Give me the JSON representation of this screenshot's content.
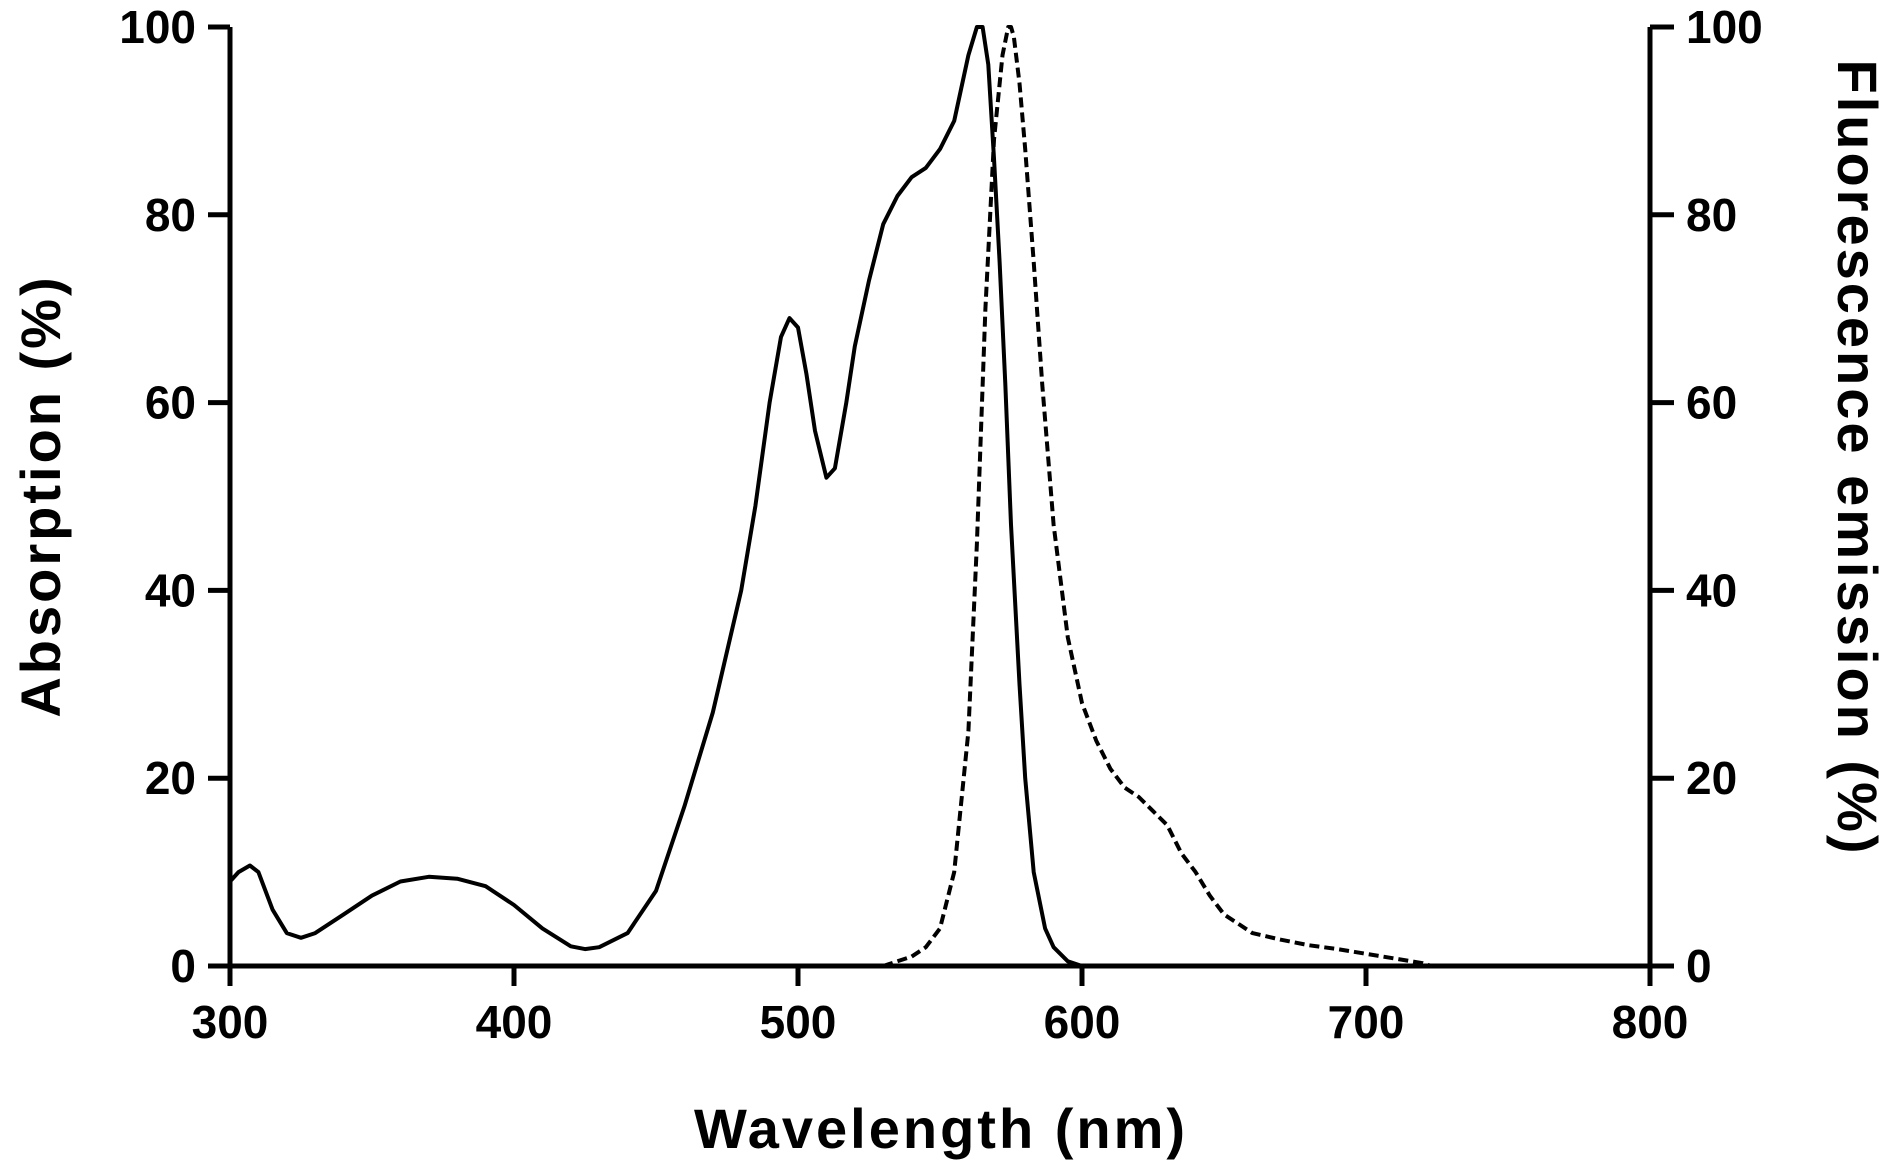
{
  "chart_data": {
    "type": "line",
    "title": "",
    "xlabel": "Wavelength (nm)",
    "ylabel": "Absorption (%)",
    "y2label": "Fluorescence emission (%)",
    "xlim": [
      300,
      800
    ],
    "ylim": [
      0,
      100
    ],
    "y2lim": [
      0,
      100
    ],
    "xticks": [
      300,
      400,
      500,
      600,
      700,
      800
    ],
    "yticks": [
      0,
      20,
      40,
      60,
      80,
      100
    ],
    "y2ticks": [
      0,
      20,
      40,
      60,
      80,
      100
    ],
    "grid": false,
    "series": [
      {
        "name": "Absorption",
        "axis": "left",
        "style": "solid",
        "x": [
          300,
          303,
          307,
          310,
          315,
          320,
          325,
          330,
          340,
          350,
          360,
          370,
          380,
          390,
          400,
          410,
          420,
          425,
          430,
          440,
          450,
          460,
          470,
          480,
          485,
          490,
          494,
          497,
          500,
          503,
          506,
          510,
          513,
          517,
          520,
          525,
          530,
          535,
          540,
          545,
          550,
          555,
          560,
          563,
          565,
          567,
          569,
          571,
          573,
          575,
          578,
          580,
          583,
          587,
          590,
          595,
          600,
          605
        ],
        "y": [
          9,
          10,
          10.7,
          10,
          6,
          3.5,
          3,
          3.5,
          5.5,
          7.5,
          9,
          9.5,
          9.3,
          8.5,
          6.5,
          4,
          2.1,
          1.8,
          2,
          3.5,
          8,
          17,
          27,
          40,
          49,
          60,
          67,
          69,
          68,
          63,
          57,
          52,
          53,
          60,
          66,
          73,
          79,
          82,
          84,
          85,
          87,
          90,
          97,
          100,
          100,
          96,
          86,
          75,
          62,
          47,
          30,
          20,
          10,
          4,
          2,
          0.5,
          0,
          0
        ]
      },
      {
        "name": "Fluorescence emission",
        "axis": "right",
        "style": "dashed",
        "x": [
          530,
          540,
          545,
          550,
          555,
          560,
          563,
          566,
          569,
          572,
          574,
          575,
          576,
          578,
          580,
          583,
          586,
          590,
          595,
          600,
          605,
          610,
          615,
          620,
          625,
          630,
          635,
          640,
          645,
          650,
          655,
          660,
          670,
          680,
          690,
          700,
          710,
          720,
          723
        ],
        "y": [
          0,
          1,
          2,
          4,
          10,
          25,
          45,
          70,
          88,
          97,
          100,
          100,
          99,
          94,
          87,
          75,
          62,
          47,
          35,
          28,
          24,
          21,
          19,
          18,
          16.5,
          15,
          12,
          10,
          7.5,
          5.5,
          4.5,
          3.5,
          2.8,
          2.2,
          1.8,
          1.3,
          0.8,
          0.3,
          0
        ]
      }
    ]
  }
}
